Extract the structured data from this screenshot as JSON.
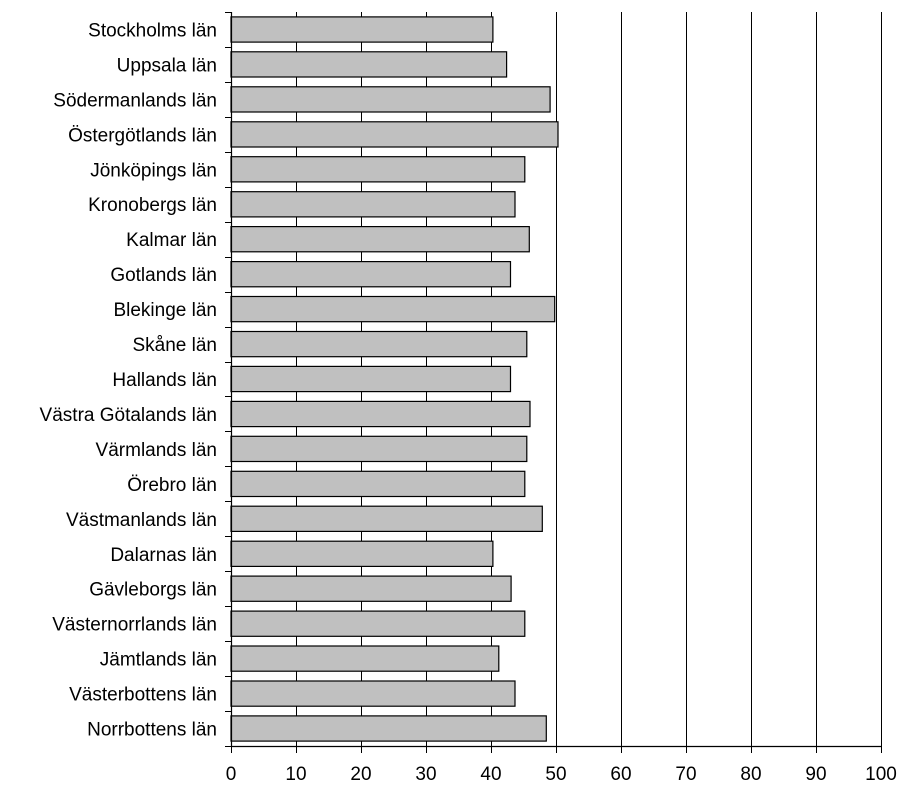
{
  "chart_data": {
    "type": "bar",
    "orientation": "horizontal",
    "categories": [
      "Stockholms län",
      "Uppsala län",
      "Södermanlands län",
      "Östergötlands län",
      "Jönköpings län",
      "Kronobergs län",
      "Kalmar län",
      "Gotlands län",
      "Blekinge län",
      "Skåne län",
      "Hallands län",
      "Västra Götalands län",
      "Värmlands län",
      "Örebro län",
      "Västmanlands län",
      "Dalarnas län",
      "Gävleborgs län",
      "Västernorrlands län",
      "Jämtlands län",
      "Västerbottens län",
      "Norrbottens län"
    ],
    "values": [
      40.3,
      42.4,
      49.1,
      50.3,
      45.2,
      43.7,
      45.9,
      43.0,
      49.8,
      45.5,
      43.0,
      46.0,
      45.5,
      45.2,
      47.9,
      40.3,
      43.1,
      45.2,
      41.2,
      43.7,
      48.5
    ],
    "xlim": [
      0,
      100
    ],
    "xticks": [
      0,
      10,
      20,
      30,
      40,
      50,
      60,
      70,
      80,
      90,
      100
    ],
    "title": "",
    "xlabel": "",
    "ylabel": "",
    "grid": "vertical",
    "legend": "none",
    "colors": {
      "bar_fill": "#c0c0c0",
      "bar_stroke": "#000000",
      "gridline": "#000000",
      "axis": "#000000",
      "background": "#ffffff"
    }
  }
}
